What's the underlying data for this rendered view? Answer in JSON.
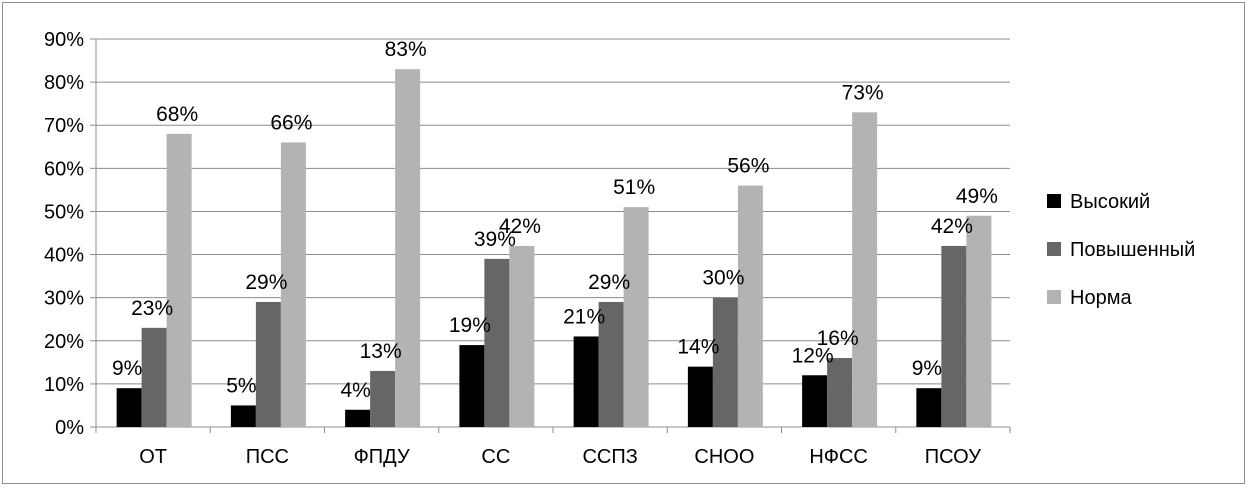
{
  "chart_data": {
    "type": "bar",
    "categories": [
      "ОТ",
      "ПСС",
      "ФПДУ",
      "СС",
      "ССПЗ",
      "СНОО",
      "НФСС",
      "ПСОУ"
    ],
    "series": [
      {
        "name": "Высокий",
        "values": [
          9,
          5,
          4,
          19,
          21,
          14,
          12,
          9
        ],
        "color": "#000000"
      },
      {
        "name": "Повышенный",
        "values": [
          23,
          29,
          13,
          39,
          29,
          30,
          16,
          42
        ],
        "color": "#666666"
      },
      {
        "name": "Норма",
        "values": [
          68,
          66,
          83,
          42,
          51,
          56,
          73,
          49
        ],
        "color": "#b3b3b3"
      }
    ],
    "y_ticks": [
      "0%",
      "10%",
      "20%",
      "30%",
      "40%",
      "50%",
      "60%",
      "70%",
      "80%",
      "90%"
    ],
    "ylim": [
      0,
      90
    ],
    "grid": true,
    "legend_position": "right",
    "data_label_suffix": "%"
  }
}
